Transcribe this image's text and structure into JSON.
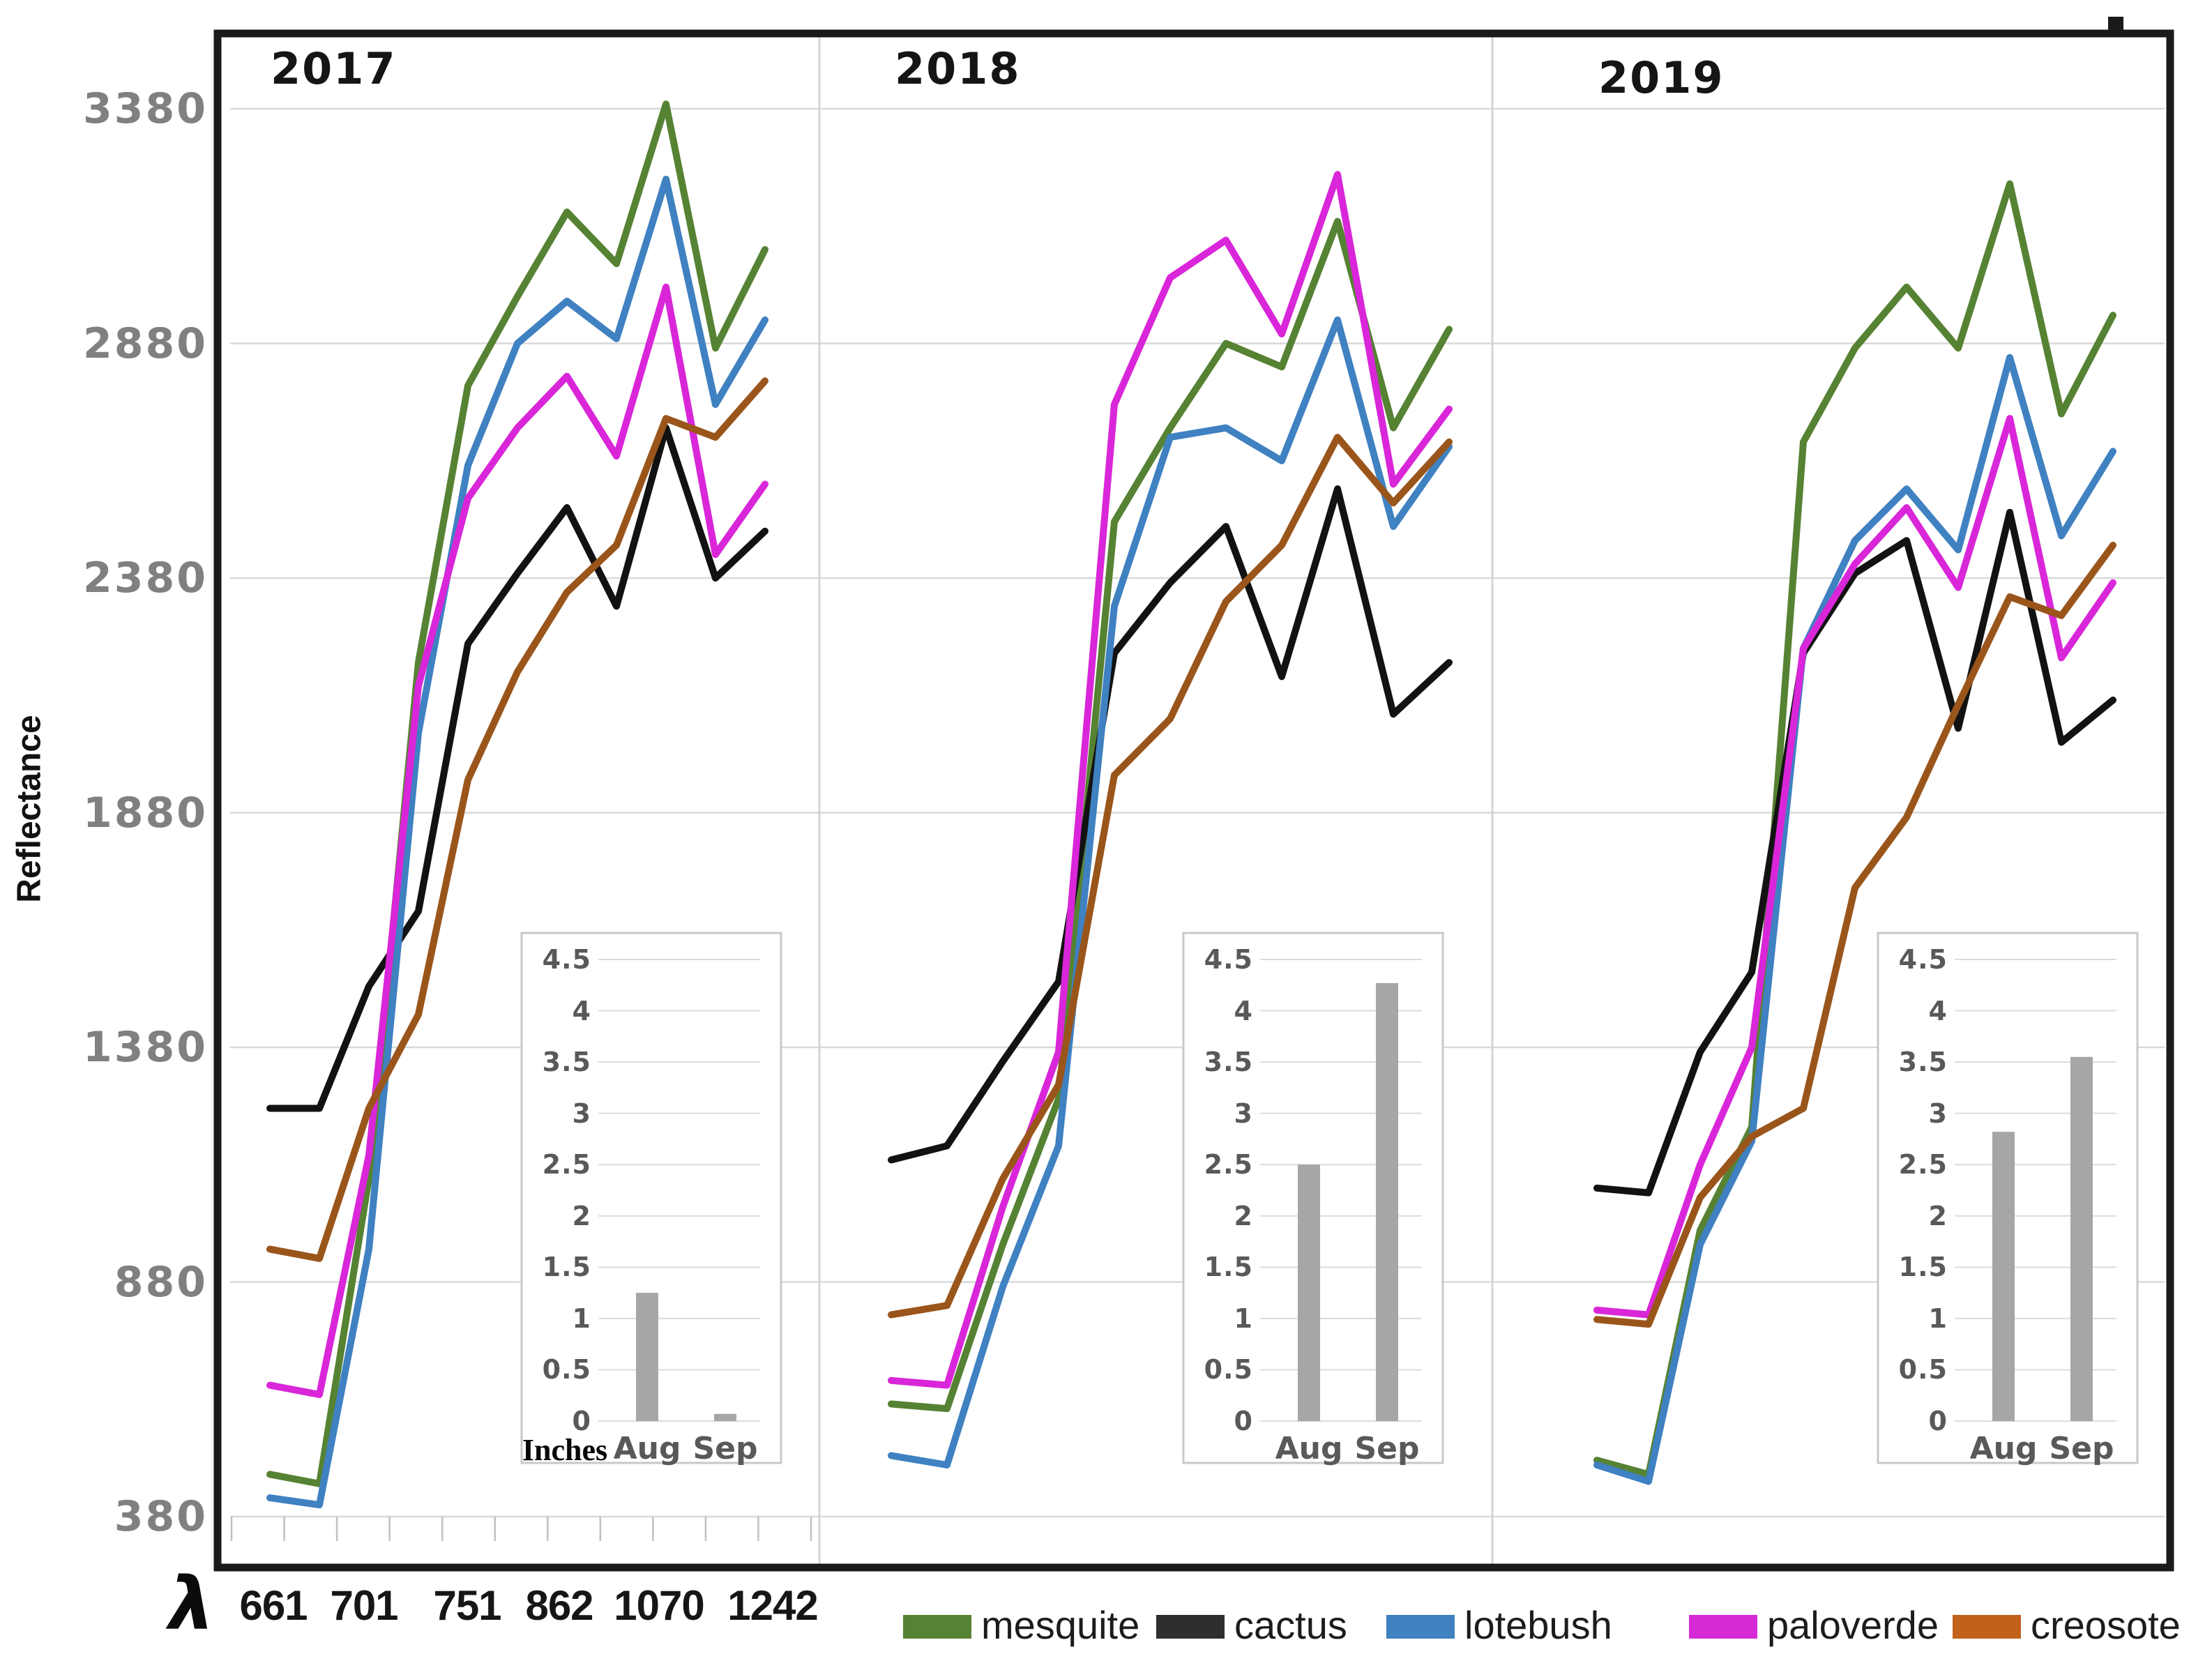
{
  "chart_data": {
    "type": "line",
    "title": "",
    "ylabel": "Reflectance",
    "ylim": [
      380,
      3380
    ],
    "y_tick_labels": [
      "3380",
      "2880",
      "2380",
      "1880",
      "1380",
      "880",
      "380"
    ],
    "y_tick_values": [
      3380,
      2880,
      2380,
      1880,
      1380,
      880,
      380
    ],
    "x_symbol": "λ",
    "x_tick_labels": [
      "661",
      "701",
      "751",
      "862",
      "1070",
      "1242"
    ],
    "grid": "on",
    "points_per_series": 11,
    "legend": {
      "position": "bottom",
      "entries": [
        {
          "label": "mesquite",
          "color": "#568233"
        },
        {
          "label": "cactus",
          "color": "#2e2e2e"
        },
        {
          "label": "lotebush",
          "color": "#3f81c1"
        },
        {
          "label": "paloverde",
          "color": "#d62ad6"
        },
        {
          "label": "creosote",
          "color": "#c2611c"
        }
      ]
    },
    "panels": [
      {
        "year": "2017",
        "series": [
          {
            "name": "mesquite",
            "color": "#568233",
            "values": [
              470,
              450,
              1100,
              2200,
              2790,
              2980,
              3160,
              3050,
              3390,
              2870,
              3080
            ]
          },
          {
            "name": "cactus",
            "color": "#121212",
            "values": [
              1250,
              1250,
              1510,
              1670,
              2240,
              2390,
              2530,
              2320,
              2700,
              2380,
              2480
            ]
          },
          {
            "name": "lotebush",
            "color": "#3f81c1",
            "values": [
              420,
              405,
              950,
              2050,
              2620,
              2880,
              2970,
              2890,
              3230,
              2750,
              2930
            ]
          },
          {
            "name": "paloverde",
            "color": "#d926d9",
            "values": [
              660,
              640,
              1150,
              2150,
              2550,
              2700,
              2810,
              2640,
              3000,
              2430,
              2580
            ]
          },
          {
            "name": "creosote",
            "color": "#9a551b",
            "values": [
              950,
              930,
              1250,
              1450,
              1950,
              2180,
              2350,
              2450,
              2720,
              2680,
              2800
            ]
          }
        ],
        "inset": {
          "type": "bar",
          "unit_label": "Inches",
          "categories": [
            "Aug",
            "Sep"
          ],
          "values": [
            1.25,
            0.07
          ],
          "ylim": [
            0,
            4.5
          ],
          "y_ticks": [
            "4.5",
            "4",
            "3.5",
            "3",
            "2.5",
            "2",
            "1.5",
            "1",
            "0.5",
            "0"
          ],
          "bar_color": "#a6a6a6"
        }
      },
      {
        "year": "2018",
        "series": [
          {
            "name": "mesquite",
            "color": "#568233",
            "values": [
              620,
              610,
              960,
              1270,
              2500,
              2700,
              2880,
              2830,
              3140,
              2700,
              2910
            ]
          },
          {
            "name": "cactus",
            "color": "#121212",
            "values": [
              1140,
              1170,
              1350,
              1520,
              2220,
              2370,
              2490,
              2170,
              2570,
              2090,
              2200
            ]
          },
          {
            "name": "lotebush",
            "color": "#3f81c1",
            "values": [
              510,
              490,
              870,
              1170,
              2320,
              2680,
              2700,
              2630,
              2930,
              2490,
              2660
            ]
          },
          {
            "name": "paloverde",
            "color": "#d926d9",
            "values": [
              670,
              660,
              1040,
              1370,
              2750,
              3020,
              3100,
              2900,
              3240,
              2580,
              2740
            ]
          },
          {
            "name": "creosote",
            "color": "#9a551b",
            "values": [
              810,
              830,
              1100,
              1300,
              1960,
              2080,
              2330,
              2450,
              2680,
              2540,
              2670
            ]
          }
        ],
        "inset": {
          "type": "bar",
          "unit_label": "",
          "categories": [
            "Aug",
            "Sep"
          ],
          "values": [
            2.5,
            4.27
          ],
          "ylim": [
            0,
            4.5
          ],
          "y_ticks": [
            "4.5",
            "4",
            "3.5",
            "3",
            "2.5",
            "2",
            "1.5",
            "1",
            "0.5",
            "0"
          ],
          "bar_color": "#a6a6a6"
        }
      },
      {
        "year": "2019",
        "series": [
          {
            "name": "mesquite",
            "color": "#568233",
            "values": [
              500,
              470,
              990,
              1210,
              2670,
              2870,
              3000,
              2870,
              3220,
              2730,
              2940
            ]
          },
          {
            "name": "cactus",
            "color": "#121212",
            "values": [
              1080,
              1070,
              1370,
              1540,
              2220,
              2390,
              2460,
              2060,
              2520,
              2030,
              2120
            ]
          },
          {
            "name": "lotebush",
            "color": "#3f81c1",
            "values": [
              490,
              455,
              960,
              1180,
              2230,
              2460,
              2570,
              2440,
              2850,
              2470,
              2650
            ]
          },
          {
            "name": "paloverde",
            "color": "#d926d9",
            "values": [
              820,
              810,
              1130,
              1380,
              2230,
              2410,
              2530,
              2360,
              2720,
              2210,
              2370
            ]
          },
          {
            "name": "creosote",
            "color": "#9a551b",
            "values": [
              800,
              790,
              1060,
              1190,
              1250,
              1720,
              1870,
              2110,
              2340,
              2300,
              2450
            ]
          }
        ],
        "inset": {
          "type": "bar",
          "unit_label": "",
          "categories": [
            "Aug",
            "Sep"
          ],
          "values": [
            2.82,
            3.55
          ],
          "ylim": [
            0,
            4.5
          ],
          "y_ticks": [
            "4.5",
            "4",
            "3.5",
            "3",
            "2.5",
            "2",
            "1.5",
            "1",
            "0.5",
            "0"
          ],
          "bar_color": "#a6a6a6"
        }
      }
    ]
  }
}
